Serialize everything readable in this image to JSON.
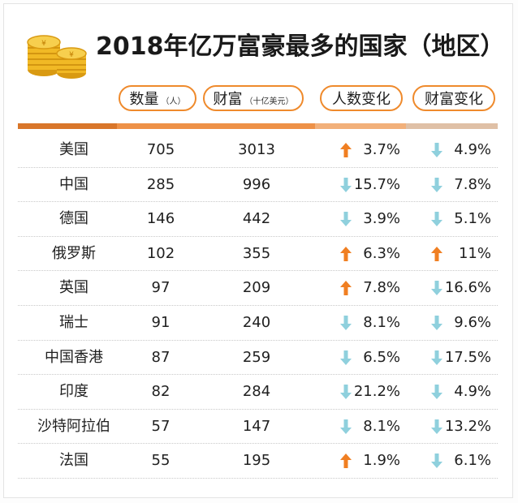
{
  "title": "2018年亿万富豪最多的国家（地区）",
  "headers": {
    "count": {
      "label": "数量",
      "unit": "（人）"
    },
    "wealth": {
      "label": "财富",
      "unit": "（十亿美元）"
    },
    "count_change": {
      "label": "人数变化"
    },
    "wealth_change": {
      "label": "财富变化"
    }
  },
  "colors": {
    "accent": "#ef8a2c",
    "arrow_up": "#f07f22",
    "arrow_down": "#8fd0dd",
    "band_1": "#d9762a",
    "band_2": "#ee9147",
    "band_3": "#f2b07a",
    "band_4": "#dfc0a6"
  },
  "icons": {
    "coins": "gold-coins-icon",
    "up": "arrow-up-icon",
    "down": "arrow-down-icon"
  },
  "chart_data": {
    "type": "table",
    "title": "2018年亿万富豪最多的国家（地区）",
    "columns": [
      "数量（人）",
      "财富（十亿美元）",
      "人数变化",
      "财富变化"
    ],
    "rows": [
      {
        "name": "美国",
        "count": "705",
        "wealth": "3013",
        "count_change": {
          "dir": "up",
          "value": "3.7%"
        },
        "wealth_change": {
          "dir": "down",
          "value": "4.9%"
        }
      },
      {
        "name": "中国",
        "count": "285",
        "wealth": "996",
        "count_change": {
          "dir": "down",
          "value": "15.7%"
        },
        "wealth_change": {
          "dir": "down",
          "value": "7.8%"
        }
      },
      {
        "name": "德国",
        "count": "146",
        "wealth": "442",
        "count_change": {
          "dir": "down",
          "value": "3.9%"
        },
        "wealth_change": {
          "dir": "down",
          "value": "5.1%"
        }
      },
      {
        "name": "俄罗斯",
        "count": "102",
        "wealth": "355",
        "count_change": {
          "dir": "up",
          "value": "6.3%"
        },
        "wealth_change": {
          "dir": "up",
          "value": "11%"
        }
      },
      {
        "name": "英国",
        "count": "97",
        "wealth": "209",
        "count_change": {
          "dir": "up",
          "value": "7.8%"
        },
        "wealth_change": {
          "dir": "down",
          "value": "16.6%"
        }
      },
      {
        "name": "瑞士",
        "count": "91",
        "wealth": "240",
        "count_change": {
          "dir": "down",
          "value": "8.1%"
        },
        "wealth_change": {
          "dir": "down",
          "value": "9.6%"
        }
      },
      {
        "name": "中国香港",
        "count": "87",
        "wealth": "259",
        "count_change": {
          "dir": "down",
          "value": "6.5%"
        },
        "wealth_change": {
          "dir": "down",
          "value": "17.5%"
        }
      },
      {
        "name": "印度",
        "count": "82",
        "wealth": "284",
        "count_change": {
          "dir": "down",
          "value": "21.2%"
        },
        "wealth_change": {
          "dir": "down",
          "value": "4.9%"
        }
      },
      {
        "name": "沙特阿拉伯",
        "count": "57",
        "wealth": "147",
        "count_change": {
          "dir": "down",
          "value": "8.1%"
        },
        "wealth_change": {
          "dir": "down",
          "value": "13.2%"
        }
      },
      {
        "name": "法国",
        "count": "55",
        "wealth": "195",
        "count_change": {
          "dir": "up",
          "value": "1.9%"
        },
        "wealth_change": {
          "dir": "down",
          "value": "6.1%"
        }
      }
    ]
  }
}
